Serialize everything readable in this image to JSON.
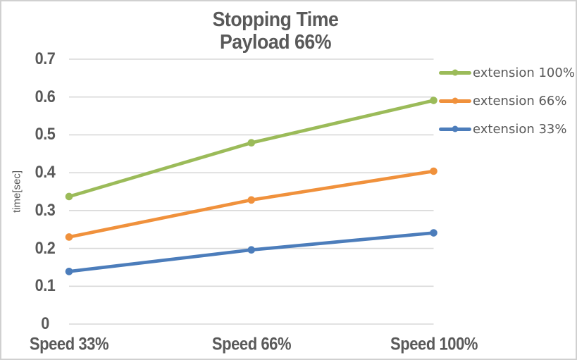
{
  "chart": {
    "background": "#FFFFFF",
    "border_color": "#D0D0D0",
    "text_color": "#595959",
    "grid_color": "#D9D9D9"
  },
  "chart_data": {
    "type": "line",
    "title": "Stopping Time",
    "subtitle": "Payload 66%",
    "ylabel": "time[sec]",
    "xlabel": "",
    "categories": [
      "Speed 33%",
      "Speed 66%",
      "Speed 100%"
    ],
    "series": [
      {
        "name": "extension 100%",
        "color": "#9BBB59",
        "values": [
          0.337,
          0.479,
          0.591
        ]
      },
      {
        "name": "extension 66%",
        "color": "#F0913C",
        "values": [
          0.23,
          0.328,
          0.404
        ]
      },
      {
        "name": "extension 33%",
        "color": "#4C7DBB",
        "values": [
          0.139,
          0.196,
          0.241
        ]
      }
    ],
    "ylim": [
      0,
      0.7
    ],
    "ytick_step": 0.1,
    "ytick_labels": [
      "0",
      "0.1",
      "0.2",
      "0.3",
      "0.4",
      "0.5",
      "0.6",
      "0.7"
    ],
    "grid": true,
    "legend_position": "right",
    "marker": "circle"
  }
}
